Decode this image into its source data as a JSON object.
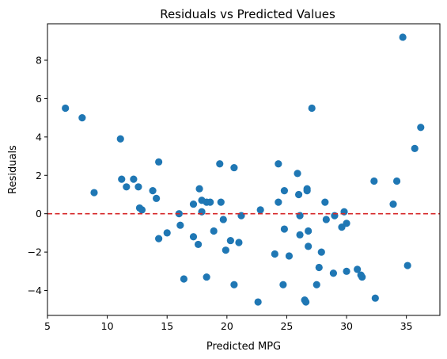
{
  "chart_data": {
    "type": "scatter",
    "title": "Residuals vs Predicted Values",
    "xlabel": "Predicted MPG",
    "ylabel": "Residuals",
    "xlim": [
      5,
      37.8
    ],
    "ylim": [
      -5.3,
      9.9
    ],
    "xticks": [
      5,
      10,
      15,
      20,
      25,
      30,
      35
    ],
    "xtick_labels": [
      "5",
      "10",
      "15",
      "20",
      "25",
      "30",
      "35"
    ],
    "yticks": [
      -4,
      -2,
      0,
      2,
      4,
      6,
      8
    ],
    "ytick_labels": [
      "−4",
      "−2",
      "0",
      "2",
      "4",
      "6",
      "8"
    ],
    "grid": false,
    "reference_line": {
      "y": 0,
      "style": "dashed",
      "color": "#d62728"
    },
    "marker_color": "#1f77b4",
    "points": [
      [
        6.5,
        5.5
      ],
      [
        7.9,
        5.0
      ],
      [
        8.9,
        1.1
      ],
      [
        11.1,
        3.9
      ],
      [
        11.2,
        1.8
      ],
      [
        11.6,
        1.4
      ],
      [
        12.2,
        1.8
      ],
      [
        12.6,
        1.4
      ],
      [
        12.7,
        0.3
      ],
      [
        12.9,
        0.2
      ],
      [
        13.8,
        1.2
      ],
      [
        14.1,
        0.8
      ],
      [
        14.3,
        2.7
      ],
      [
        14.3,
        -1.3
      ],
      [
        15.0,
        -1.0
      ],
      [
        16.0,
        0.0
      ],
      [
        16.1,
        -0.6
      ],
      [
        16.4,
        -3.4
      ],
      [
        17.2,
        0.5
      ],
      [
        17.2,
        -1.2
      ],
      [
        17.6,
        -1.6
      ],
      [
        17.7,
        1.3
      ],
      [
        17.9,
        0.1
      ],
      [
        17.9,
        0.7
      ],
      [
        18.3,
        0.6
      ],
      [
        18.3,
        -3.3
      ],
      [
        18.6,
        0.6
      ],
      [
        18.9,
        -0.9
      ],
      [
        19.4,
        2.6
      ],
      [
        19.5,
        0.6
      ],
      [
        19.7,
        -0.3
      ],
      [
        19.9,
        -1.9
      ],
      [
        20.3,
        -1.4
      ],
      [
        20.6,
        2.4
      ],
      [
        20.6,
        -3.7
      ],
      [
        21.0,
        -1.5
      ],
      [
        21.2,
        -0.1
      ],
      [
        22.6,
        -4.6
      ],
      [
        22.8,
        0.2
      ],
      [
        24.0,
        -2.1
      ],
      [
        24.3,
        0.6
      ],
      [
        24.3,
        2.6
      ],
      [
        24.7,
        -3.7
      ],
      [
        24.8,
        1.2
      ],
      [
        24.8,
        -0.8
      ],
      [
        25.2,
        -2.2
      ],
      [
        25.9,
        2.1
      ],
      [
        26.0,
        1.0
      ],
      [
        26.1,
        -0.1
      ],
      [
        26.1,
        -1.1
      ],
      [
        26.5,
        -4.5
      ],
      [
        26.6,
        -4.6
      ],
      [
        26.7,
        1.3
      ],
      [
        26.7,
        1.2
      ],
      [
        26.8,
        -1.7
      ],
      [
        26.8,
        -0.9
      ],
      [
        27.1,
        5.5
      ],
      [
        27.5,
        -3.7
      ],
      [
        27.7,
        -2.8
      ],
      [
        27.9,
        -2.0
      ],
      [
        28.2,
        0.6
      ],
      [
        28.3,
        -0.3
      ],
      [
        28.9,
        -3.1
      ],
      [
        29.0,
        -0.1
      ],
      [
        29.6,
        -0.7
      ],
      [
        29.8,
        0.1
      ],
      [
        30.0,
        -0.5
      ],
      [
        30.0,
        -3.0
      ],
      [
        30.9,
        -2.9
      ],
      [
        31.2,
        -3.2
      ],
      [
        31.3,
        -3.3
      ],
      [
        32.3,
        1.7
      ],
      [
        32.4,
        -4.4
      ],
      [
        33.9,
        0.5
      ],
      [
        34.2,
        1.7
      ],
      [
        34.7,
        9.2
      ],
      [
        35.1,
        -2.7
      ],
      [
        35.7,
        3.4
      ],
      [
        36.2,
        4.5
      ]
    ]
  }
}
